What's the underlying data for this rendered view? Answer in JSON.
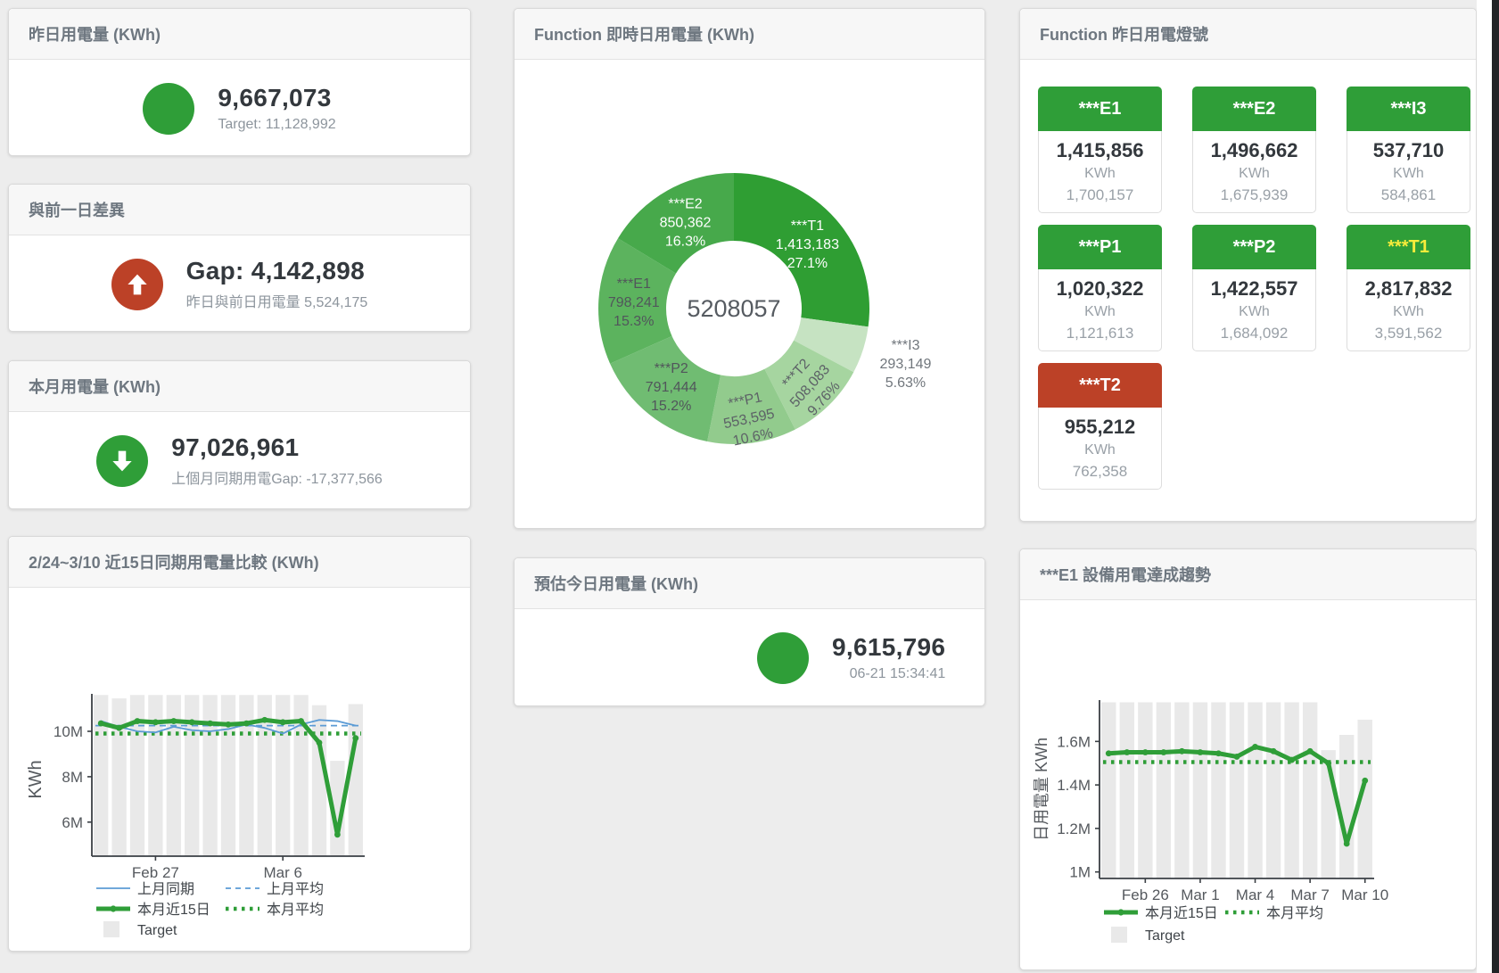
{
  "colors": {
    "background": "#ededed",
    "card_border": "#d9d9d9",
    "header_bg": "#f7f7f7",
    "title_text": "#6e7780",
    "green": "#2f9e38",
    "red": "#bc4127",
    "blue": "#5b9bd5",
    "bar_gray": "#e9e9e9",
    "value_text": "#33383d",
    "sub_text": "#8d959d",
    "tile_warn_label": "#f7ec3b"
  },
  "cards": {
    "yesterday": {
      "title": "昨日用電量 (KWh)",
      "value": "9,667,073",
      "sub": "Target: 11,128,992",
      "icon": "green-circle"
    },
    "gap_prev_day": {
      "title": "與前一日差異",
      "value": "Gap: 4,142,898",
      "sub": "昨日與前日用電量 5,524,175",
      "icon": "red-up-arrow"
    },
    "month": {
      "title": "本月用電量 (KWh)",
      "value": "97,026,961",
      "sub": "上個月同期用電Gap: -17,377,566",
      "icon": "green-down-arrow"
    },
    "forecast": {
      "title": "預估今日用電量 (KWh)",
      "value": "9,615,796",
      "sub": "06-21 15:34:41",
      "icon": "green-circle"
    },
    "lights": {
      "title": "Function 昨日用電燈號",
      "tiles": [
        {
          "label": "***E1",
          "value": "1,415,856",
          "unit": "KWh",
          "target": "1,700,157",
          "status": "green",
          "label_color": "#ffffff"
        },
        {
          "label": "***E2",
          "value": "1,496,662",
          "unit": "KWh",
          "target": "1,675,939",
          "status": "green",
          "label_color": "#ffffff"
        },
        {
          "label": "***I3",
          "value": "537,710",
          "unit": "KWh",
          "target": "584,861",
          "status": "green",
          "label_color": "#ffffff"
        },
        {
          "label": "***P1",
          "value": "1,020,322",
          "unit": "KWh",
          "target": "1,121,613",
          "status": "green",
          "label_color": "#ffffff"
        },
        {
          "label": "***P2",
          "value": "1,422,557",
          "unit": "KWh",
          "target": "1,684,092",
          "status": "green",
          "label_color": "#ffffff"
        },
        {
          "label": "***T1",
          "value": "2,817,832",
          "unit": "KWh",
          "target": "3,591,562",
          "status": "green",
          "label_color": "#f7ec3b"
        },
        {
          "label": "***T2",
          "value": "955,212",
          "unit": "KWh",
          "target": "762,358",
          "status": "red",
          "label_color": "#ffffff"
        }
      ]
    }
  },
  "chart_data": [
    {
      "id": "realtime_donut",
      "type": "pie",
      "title": "Function 即時日用電量 (KWh)",
      "center_total": "5208057",
      "slices": [
        {
          "name": "***T1",
          "value": 1413183,
          "value_label": "1,413,183",
          "pct": "27.1%",
          "color": "#2f9e33",
          "text_color": "#ffffff",
          "rot": 0,
          "label_r": 0.72
        },
        {
          "name": "***I3",
          "value": 293149,
          "value_label": "293,149",
          "pct": "5.63%",
          "color": "#c6e3c2",
          "text_color": "#70767c",
          "rot": 0,
          "label_r": 1.33
        },
        {
          "name": "***T2",
          "value": 508083,
          "value_label": "508,083",
          "pct": "9.76%",
          "color": "#a6d5a0",
          "text_color": "#5d6267",
          "rot": -48,
          "label_r": 0.8
        },
        {
          "name": "***P1",
          "value": 553595,
          "value_label": "553,595",
          "pct": "10.6%",
          "color": "#92cb8d",
          "text_color": "#5d6267",
          "rot": -12,
          "label_r": 0.82
        },
        {
          "name": "***P2",
          "value": 791444,
          "value_label": "791,444",
          "pct": "15.2%",
          "color": "#70bc72",
          "text_color": "#51565b",
          "rot": 0,
          "label_r": 0.74
        },
        {
          "name": "***E1",
          "value": 798241,
          "value_label": "798,241",
          "pct": "15.3%",
          "color": "#5cb35e",
          "text_color": "#51565b",
          "rot": 0,
          "label_r": 0.74
        },
        {
          "name": "***E2",
          "value": 850362,
          "value_label": "850,362",
          "pct": "16.3%",
          "color": "#47a94b",
          "text_color": "#ffffff",
          "rot": 0,
          "label_r": 0.73
        }
      ]
    },
    {
      "id": "compare15",
      "type": "line+bar",
      "title": "2/24~3/10 近15日同期用電量比較 (KWh)",
      "ylabel": "KWh",
      "ylim": [
        4.5,
        11.65
      ],
      "x_count": 15,
      "x_range": "2/24~3/10",
      "yticks": [
        {
          "label": "6M",
          "v": 6
        },
        {
          "label": "8M",
          "v": 8
        },
        {
          "label": "10M",
          "v": 10
        }
      ],
      "xticks": [
        {
          "label": "Feb 27",
          "i": 3
        },
        {
          "label": "Mar 6",
          "i": 10
        }
      ],
      "bar_color": "#e9e9e9",
      "target_bars": [
        11.6,
        11.45,
        11.6,
        11.6,
        11.6,
        11.6,
        11.6,
        11.6,
        11.6,
        11.6,
        11.6,
        11.6,
        11.15,
        8.7,
        11.2
      ],
      "series": [
        {
          "name": "上月同期",
          "style": "thin",
          "color": "#5b9bd5",
          "values": [
            10.45,
            10.2,
            10.0,
            9.95,
            10.2,
            10.05,
            10.0,
            10.1,
            10.3,
            10.15,
            9.9,
            10.3,
            10.5,
            10.45,
            10.25
          ]
        },
        {
          "name": "本月近15日",
          "style": "thick",
          "color": "#2f9e38",
          "values": [
            10.35,
            10.15,
            10.45,
            10.4,
            10.45,
            10.4,
            10.35,
            10.3,
            10.35,
            10.5,
            10.4,
            10.45,
            9.5,
            5.45,
            9.7
          ]
        }
      ],
      "avg_lines": [
        {
          "name": "上月平均",
          "style": "dashed",
          "color": "#5b9bd5",
          "value": 10.25
        },
        {
          "name": "本月平均",
          "style": "dotted",
          "color": "#2f9e38",
          "value": 9.9
        }
      ],
      "legend": [
        [
          {
            "label": "上月同期",
            "swatch": "thin",
            "color": "#5b9bd5"
          },
          {
            "label": "上月平均",
            "swatch": "dashed",
            "color": "#5b9bd5"
          }
        ],
        [
          {
            "label": "本月近15日",
            "swatch": "thick",
            "color": "#2f9e38"
          },
          {
            "label": "本月平均",
            "swatch": "dotted",
            "color": "#2f9e38"
          }
        ],
        [
          {
            "label": "Target",
            "swatch": "square",
            "color": "#e9e9e9"
          }
        ]
      ]
    },
    {
      "id": "e1_trend",
      "type": "line+bar",
      "title": "***E1 設備用電達成趨勢",
      "ylabel": "日用電量 KWh",
      "ylim": [
        0.97,
        1.79
      ],
      "x_count": 15,
      "yticks": [
        {
          "label": "1M",
          "v": 1
        },
        {
          "label": "1.2M",
          "v": 1.2
        },
        {
          "label": "1.4M",
          "v": 1.4
        },
        {
          "label": "1.6M",
          "v": 1.6
        }
      ],
      "xticks": [
        {
          "label": "Feb 26",
          "i": 2
        },
        {
          "label": "Mar 1",
          "i": 5
        },
        {
          "label": "Mar 4",
          "i": 8
        },
        {
          "label": "Mar 7",
          "i": 11
        },
        {
          "label": "Mar 10",
          "i": 14
        }
      ],
      "bar_color": "#e9e9e9",
      "target_bars": [
        1.78,
        1.78,
        1.78,
        1.78,
        1.78,
        1.78,
        1.78,
        1.78,
        1.78,
        1.78,
        1.78,
        1.78,
        1.56,
        1.63,
        1.7
      ],
      "series": [
        {
          "name": "本月近15日",
          "style": "thick",
          "color": "#2f9e38",
          "values": [
            1.545,
            1.55,
            1.55,
            1.55,
            1.555,
            1.55,
            1.545,
            1.53,
            1.575,
            1.555,
            1.515,
            1.555,
            1.5,
            1.13,
            1.42
          ]
        }
      ],
      "avg_lines": [
        {
          "name": "本月平均",
          "style": "dotted",
          "color": "#2f9e38",
          "value": 1.505
        }
      ],
      "legend": [
        [
          {
            "label": "本月近15日",
            "swatch": "thick",
            "color": "#2f9e38"
          },
          {
            "label": "本月平均",
            "swatch": "dotted",
            "color": "#2f9e38"
          }
        ],
        [
          {
            "label": "Target",
            "swatch": "square",
            "color": "#e9e9e9"
          }
        ]
      ]
    }
  ]
}
